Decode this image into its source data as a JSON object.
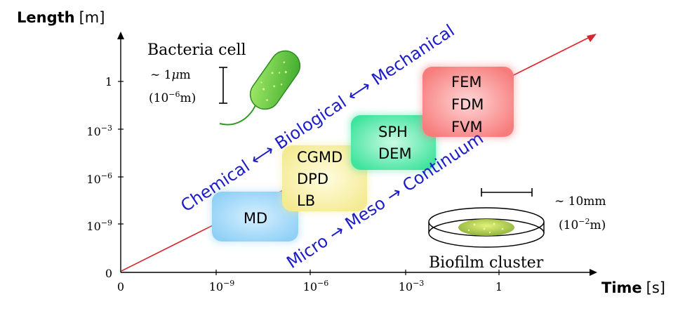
{
  "axes": {
    "y_title_bold": "Length",
    "y_title_unit": "[m]",
    "x_title_bold": "Time",
    "x_title_unit": "[s]",
    "y_ticks": [
      {
        "base": "0",
        "exp": ""
      },
      {
        "base": "10",
        "exp": "−9"
      },
      {
        "base": "10",
        "exp": "−6"
      },
      {
        "base": "10",
        "exp": "−3"
      },
      {
        "base": "1",
        "exp": ""
      }
    ],
    "x_ticks": [
      {
        "base": "0",
        "exp": ""
      },
      {
        "base": "10",
        "exp": "−9"
      },
      {
        "base": "10",
        "exp": "−6"
      },
      {
        "base": "10",
        "exp": "−3"
      },
      {
        "base": "1",
        "exp": ""
      }
    ]
  },
  "diagonal_labels": {
    "upper": "Chemical ⟷ Biological ⟷ Mechanical",
    "lower": "Micro → Meso → Continuum"
  },
  "methods": [
    {
      "lines": [
        "MD"
      ],
      "color": "#aee0fb"
    },
    {
      "lines": [
        "CGMD",
        "DPD",
        "LB"
      ],
      "color": "#faf4b4"
    },
    {
      "lines": [
        "SPH",
        "DEM"
      ],
      "color": "#8ff0c5"
    },
    {
      "lines": [
        "FEM",
        "FDM",
        "FVM"
      ],
      "color": "#fa9a9a"
    }
  ],
  "bacteria": {
    "title": "Bacteria cell",
    "size_line1_prefix": "∼ 1",
    "size_line1_mu": "μ",
    "size_line1_suffix": "m",
    "size_line2_base": "(10",
    "size_line2_exp": "−6",
    "size_line2_unit": "m)"
  },
  "biofilm": {
    "title": "Biofilm cluster",
    "size_line1": "∼ 10mm",
    "size_line2_base": "(10",
    "size_line2_exp": "−2",
    "size_line2_unit": "m)"
  },
  "colors": {
    "axis": "#000000",
    "trend_line": "#d4282e",
    "diagonal_text": "#1c1cc8",
    "bacteria_fill": "#56c23a",
    "biofilm_fill": "#b4cf4e"
  }
}
